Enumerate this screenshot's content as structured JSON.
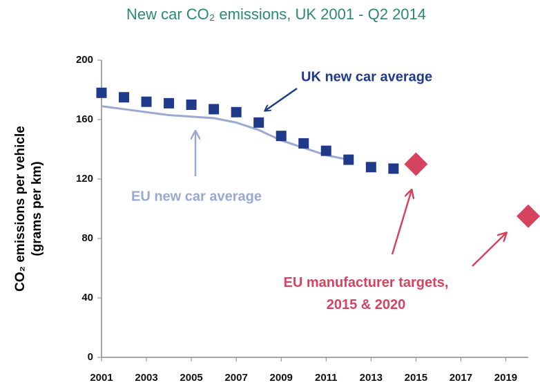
{
  "chart_data": {
    "type": "line",
    "title": "New car CO₂ emissions, UK 2001 - Q2 2014",
    "y_label": [
      "CO₂ emissions per vehicle",
      "(grams per km)"
    ],
    "xlim": [
      2001,
      2020
    ],
    "xticks": [
      2001,
      2003,
      2005,
      2007,
      2009,
      2011,
      2013,
      2015,
      2017,
      2019
    ],
    "ylim": [
      0,
      200
    ],
    "yticks": [
      0,
      40,
      80,
      120,
      160,
      200
    ],
    "series": [
      {
        "name": "EU new car average",
        "color": "#9aa8d2",
        "mark": "line",
        "x": [
          2001,
          2002,
          2003,
          2004,
          2005,
          2006,
          2007,
          2008,
          2009,
          2010,
          2011,
          2012
        ],
        "values": [
          169,
          167,
          165,
          163,
          162,
          161,
          158,
          153,
          146,
          141,
          136,
          133
        ]
      },
      {
        "name": "UK new car average",
        "color": "#1f3a8a",
        "mark": "square",
        "x": [
          2001,
          2002,
          2003,
          2004,
          2005,
          2006,
          2007,
          2008,
          2009,
          2010,
          2011,
          2012,
          2013,
          2014
        ],
        "values": [
          178,
          175,
          172,
          171,
          170,
          167,
          165,
          158,
          149,
          144,
          139,
          133,
          128,
          127
        ]
      },
      {
        "name": "EU manufacturer targets,\n2015 & 2020",
        "color": "#d6435f",
        "mark": "diamond",
        "x": [
          2015,
          2020
        ],
        "values": [
          130,
          95
        ]
      }
    ]
  }
}
